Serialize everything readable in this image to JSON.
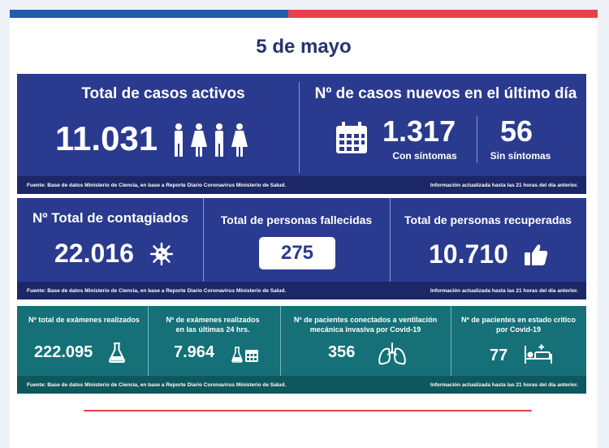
{
  "header": {
    "date": "5 de mayo"
  },
  "row1": {
    "active_title": "Total de casos activos",
    "active_value": "11.031",
    "new_title": "Nº de casos nuevos en el último día",
    "symptomatic_value": "1.317",
    "symptomatic_label": "Con síntomas",
    "asymptomatic_value": "56",
    "asymptomatic_label": "Sin síntomas",
    "source": "Fuente: Base de datos Ministerio de Ciencia, en base a Reporte Diario Coronavirus Ministerio de Salud.",
    "updated": "Información actualizada hasta las 21 horas  del día anterior."
  },
  "row2": {
    "total_title": "Nº Total de contagiados",
    "total_value": "22.016",
    "deaths_title": "Total de personas fallecidas",
    "deaths_value": "275",
    "recovered_title": "Total de personas recuperadas",
    "recovered_value": "10.710",
    "source": "Fuente: Base de datos Ministerio de Ciencia, en base a Reporte Diario Coronavirus Ministerio de Salud.",
    "updated": "Información actualizada hasta las 21 horas  del día anterior."
  },
  "row3": {
    "exams_title": "Nº total de exámenes realizados",
    "exams_value": "222.095",
    "exams24_title_1": "Nº de exámenes realizados",
    "exams24_title_2": "en las últimas 24 hrs.",
    "exams24_value": "7.964",
    "ventilation_title_1": "Nº de pacientes conectados a ventilación",
    "ventilation_title_2": "mecánica invasiva por Covid-19",
    "ventilation_value": "356",
    "critical_title_1": "Nº de pacientes en estado crítico",
    "critical_title_2": "por Covid-19",
    "critical_value": "77",
    "source": "Fuente: Base de datos Ministerio de Ciencia, en base a Reporte Diario Coronavirus Ministerio de Salud.",
    "updated": "Información actualizada hasta las 21 horas  del día anterior."
  },
  "icons": [
    "people-icon",
    "calendar-icon",
    "virus-icon",
    "thumbs-up-icon",
    "flask-icon",
    "flask-calendar-icon",
    "lungs-icon",
    "hospital-bed-icon"
  ],
  "colors": {
    "blue_panel": "#2a3a8f",
    "teal_panel": "#157078",
    "accent_red": "#e8414c",
    "accent_blue": "#1f5cb3",
    "title_navy": "#26336d"
  }
}
